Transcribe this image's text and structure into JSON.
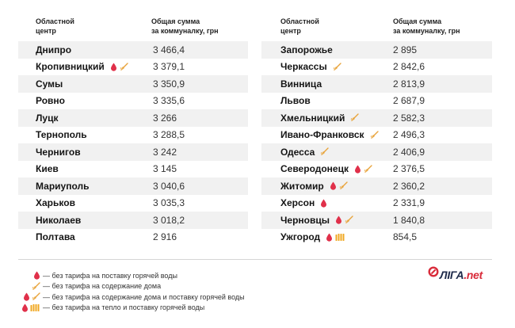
{
  "headers": {
    "city": "Областной центр",
    "city_line1": "Областной",
    "city_line2": "центр",
    "sum_line1": "Общая сумма",
    "sum_line2": "за коммуналку, грн"
  },
  "colors": {
    "drop": "#e0304a",
    "broom": "#e8a33a",
    "radiator": "#f0a823",
    "stripe": "#f1f1f1",
    "logo_dark": "#1e2a4a",
    "logo_red": "#d92b3a"
  },
  "left_table": [
    {
      "city": "Днипро",
      "value": "3 466,4",
      "icons": []
    },
    {
      "city": "Кропивницкий",
      "value": "3 379,1",
      "icons": [
        "drop-icon",
        "broom-icon"
      ]
    },
    {
      "city": "Сумы",
      "value": "3 350,9",
      "icons": []
    },
    {
      "city": "Ровно",
      "value": "3 335,6",
      "icons": []
    },
    {
      "city": "Луцк",
      "value": "3 266",
      "icons": []
    },
    {
      "city": "Тернополь",
      "value": "3 288,5",
      "icons": []
    },
    {
      "city": "Чернигов",
      "value": "3 242",
      "icons": []
    },
    {
      "city": "Киев",
      "value": "3 145",
      "icons": []
    },
    {
      "city": "Мариуполь",
      "value": "3 040,6",
      "icons": []
    },
    {
      "city": "Харьков",
      "value": "3 035,3",
      "icons": []
    },
    {
      "city": "Николаев",
      "value": "3 018,2",
      "icons": []
    },
    {
      "city": "Полтава",
      "value": "2 916",
      "icons": []
    }
  ],
  "right_table": [
    {
      "city": "Запорожье",
      "value": "2 895",
      "icons": []
    },
    {
      "city": "Черкассы",
      "value": "2 842,6",
      "icons": [
        "broom-icon"
      ]
    },
    {
      "city": "Винница",
      "value": "2 813,9",
      "icons": []
    },
    {
      "city": "Львов",
      "value": "2 687,9",
      "icons": []
    },
    {
      "city": "Хмельницкий",
      "value": "2 582,3",
      "icons": [
        "broom-icon"
      ]
    },
    {
      "city": "Ивано-Франковск",
      "value": "2 496,3",
      "icons": [
        "broom-icon"
      ]
    },
    {
      "city": "Одесса",
      "value": "2 406,9",
      "icons": [
        "broom-icon"
      ]
    },
    {
      "city": "Северодонецк",
      "value": "2 376,5",
      "icons": [
        "drop-icon",
        "broom-icon"
      ]
    },
    {
      "city": "Житомир",
      "value": "2 360,2",
      "icons": [
        "drop-icon",
        "broom-icon"
      ]
    },
    {
      "city": "Херсон",
      "value": "2 331,9",
      "icons": [
        "drop-icon"
      ]
    },
    {
      "city": "Черновцы",
      "value": "1 840,8",
      "icons": [
        "drop-icon",
        "broom-icon"
      ]
    },
    {
      "city": "Ужгород",
      "value": "854,5",
      "icons": [
        "drop-icon",
        "radiator-icon"
      ]
    }
  ],
  "legend": [
    {
      "icons": [
        "drop-icon"
      ],
      "text": "— без тарифа на поставку горячей воды"
    },
    {
      "icons": [
        "broom-icon"
      ],
      "text": "— без тарифа на содержание дома"
    },
    {
      "icons": [
        "drop-icon",
        "broom-icon"
      ],
      "text": "— без тарифа на содержание дома и поставку горячей воды"
    },
    {
      "icons": [
        "drop-icon",
        "radiator-icon"
      ],
      "text": "— без тарифа на тепло и поставку горячей воды"
    }
  ],
  "logo": {
    "brand": "ЛIГА",
    "tld": ".net"
  }
}
